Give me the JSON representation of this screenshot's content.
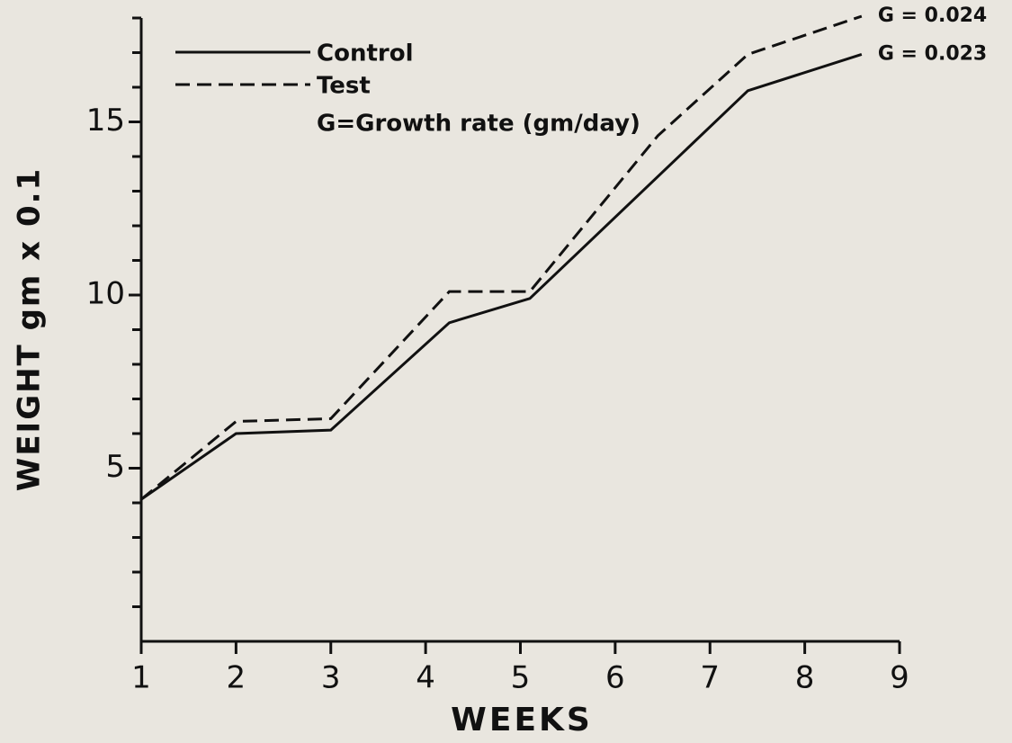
{
  "chart_data": {
    "type": "line",
    "xlabel": "WEEKS",
    "ylabel": "WEIGHT gm x 0.1",
    "legend_note": "G=Growth rate (gm/day)",
    "xlim": [
      1,
      9
    ],
    "xticks": [
      1,
      2,
      3,
      4,
      5,
      6,
      7,
      8,
      9
    ],
    "ylim": [
      0,
      18
    ],
    "yticks": [
      5,
      10,
      15
    ],
    "y_minor_ticks": [
      1,
      2,
      3,
      4,
      6,
      7,
      8,
      9,
      11,
      12,
      13,
      14,
      16,
      17,
      18
    ],
    "legend": "upper left",
    "series": [
      {
        "name": "Control",
        "color": "#111111",
        "dash": "solid",
        "growth_label": "G = 0.023",
        "x": [
          1,
          2,
          3,
          4.25,
          5.1,
          7.4,
          8.6
        ],
        "values": [
          4.1,
          6.0,
          6.1,
          9.2,
          9.9,
          15.9,
          16.95
        ]
      },
      {
        "name": "Test",
        "color": "#111111",
        "dash": "dashed",
        "growth_label": "G = 0.024",
        "x": [
          1,
          2,
          3,
          4.25,
          5.1,
          6.45,
          7.4,
          8.6
        ],
        "values": [
          4.1,
          6.35,
          6.43,
          10.1,
          10.1,
          14.6,
          16.95,
          18.05
        ]
      }
    ]
  }
}
